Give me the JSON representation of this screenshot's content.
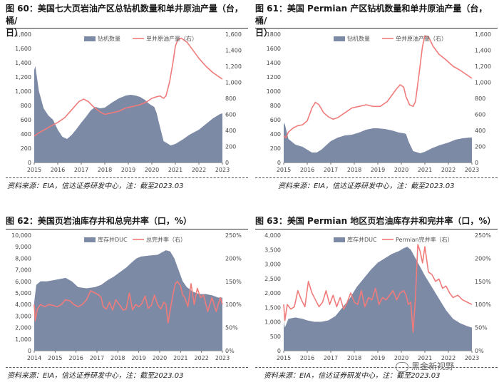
{
  "colors": {
    "area": "#7d8aa5",
    "line": "#f07b7b",
    "axis": "#555555"
  },
  "panels": [
    {
      "id": "p60",
      "title_line1": "图 60：美国七大页岩油产区总钻机数量和单井原油产量（台，桶/",
      "title_line2": "日）",
      "source": "资料来源：EIA，信达证券研发中心，注：截至2023.03",
      "chart_data": {
        "type": "area+line",
        "legend": [
          "钻机数量",
          "单井原油产量（右）"
        ],
        "legend_position": "top-center",
        "x_ticks": [
          "2015",
          "2016",
          "2017",
          "2018",
          "2019",
          "2020",
          "2021",
          "2022",
          "2023"
        ],
        "x_range": [
          2015,
          2023
        ],
        "y_left_ticks": [
          "0",
          "200",
          "400",
          "600",
          "800",
          "1,000",
          "1,200",
          "1,400",
          "1,600",
          "1,800"
        ],
        "y_left_range": [
          0,
          1800
        ],
        "y_right_ticks": [
          "0",
          "200",
          "400",
          "600",
          "800",
          "1,000",
          "1,200",
          "1,400",
          "1,600"
        ],
        "y_right_range": [
          0,
          1600
        ],
        "series": [
          {
            "name": "钻机数量",
            "axis": "left",
            "kind": "area",
            "x": [
              2015,
              2015.05,
              2015.2,
              2015.4,
              2015.6,
              2015.8,
              2016,
              2016.2,
              2016.4,
              2016.6,
              2016.8,
              2017,
              2017.2,
              2017.4,
              2017.6,
              2017.8,
              2018,
              2018.3,
              2018.6,
              2018.9,
              2019.1,
              2019.3,
              2019.5,
              2019.7,
              2019.9,
              2020.1,
              2020.2,
              2020.3,
              2020.5,
              2020.8,
              2021,
              2021.3,
              2021.6,
              2022,
              2022.3,
              2022.6,
              2022.9,
              2023
            ],
            "values": [
              1300,
              1350,
              1000,
              760,
              660,
              600,
              460,
              360,
              330,
              390,
              470,
              560,
              640,
              730,
              780,
              760,
              770,
              840,
              900,
              940,
              950,
              940,
              920,
              880,
              820,
              780,
              700,
              560,
              300,
              240,
              260,
              320,
              390,
              460,
              540,
              620,
              680,
              690
            ]
          },
          {
            "name": "单井原油产量（右）",
            "axis": "right",
            "kind": "line",
            "x": [
              2015,
              2015.2,
              2015.5,
              2015.8,
              2016,
              2016.3,
              2016.6,
              2016.9,
              2017.1,
              2017.3,
              2017.5,
              2017.8,
              2018,
              2018.3,
              2018.6,
              2018.9,
              2019.2,
              2019.5,
              2019.8,
              2020,
              2020.2,
              2020.35,
              2020.5,
              2020.6,
              2020.75,
              2020.9,
              2021,
              2021.1,
              2021.25,
              2021.5,
              2021.8,
              2022,
              2022.3,
              2022.6,
              2022.9,
              2023
            ],
            "values": [
              330,
              370,
              420,
              470,
              500,
              560,
              660,
              760,
              790,
              760,
              700,
              630,
              600,
              620,
              640,
              680,
              700,
              720,
              760,
              800,
              820,
              830,
              800,
              830,
              1000,
              1250,
              1450,
              1530,
              1550,
              1500,
              1380,
              1300,
              1200,
              1120,
              1060,
              1040
            ]
          }
        ]
      }
    },
    {
      "id": "p61",
      "title_line1": "图 61：美国 Permian 产区钻机数量和单井原油产量（台，桶/",
      "title_line2": "日）",
      "source": "资料来源：EIA，信达证券研发中心，注：截至2023.03",
      "chart_data": {
        "type": "area+line",
        "legend": [
          "钻机数量",
          "单井原油产量（右）"
        ],
        "legend_position": "top-center",
        "x_ticks": [
          "2015",
          "2016",
          "2017",
          "2018",
          "2019",
          "2020",
          "2021",
          "2022",
          "2023"
        ],
        "x_range": [
          2015,
          2023
        ],
        "y_left_ticks": [
          "0",
          "200",
          "400",
          "600",
          "800",
          "1000",
          "1200",
          "1400",
          "1600",
          "1800"
        ],
        "y_left_range": [
          0,
          1800
        ],
        "y_right_ticks": [
          "0",
          "200",
          "400",
          "600",
          "800",
          "1,000",
          "1,200",
          "1,400",
          "1,600"
        ],
        "y_right_range": [
          0,
          1600
        ],
        "series": [
          {
            "name": "钻机数量",
            "axis": "left",
            "kind": "area",
            "x": [
              2015,
              2015.03,
              2015.2,
              2015.5,
              2015.8,
              2016,
              2016.2,
              2016.4,
              2016.6,
              2016.8,
              2017,
              2017.3,
              2017.6,
              2017.9,
              2018.2,
              2018.5,
              2018.8,
              2019,
              2019.3,
              2019.6,
              2019.9,
              2020.1,
              2020.2,
              2020.3,
              2020.5,
              2020.8,
              2021,
              2021.3,
              2021.6,
              2022,
              2022.3,
              2022.6,
              2022.9,
              2023
            ],
            "values": [
              520,
              560,
              330,
              250,
              220,
              180,
              140,
              140,
              180,
              240,
              300,
              350,
              380,
              390,
              420,
              460,
              480,
              480,
              470,
              450,
              420,
              410,
              400,
              300,
              160,
              130,
              150,
              200,
              240,
              280,
              320,
              340,
              350,
              350
            ]
          },
          {
            "name": "单井原油产量（右）",
            "axis": "right",
            "kind": "line",
            "x": [
              2015,
              2015.1,
              2015.2,
              2015.4,
              2015.6,
              2015.8,
              2016,
              2016.2,
              2016.35,
              2016.5,
              2016.7,
              2016.9,
              2017.1,
              2017.3,
              2017.6,
              2017.9,
              2018.2,
              2018.5,
              2018.8,
              2019.1,
              2019.4,
              2019.6,
              2019.8,
              2019.95,
              2020.1,
              2020.2,
              2020.35,
              2020.5,
              2020.6,
              2020.75,
              2020.9,
              2021,
              2021.15,
              2021.35,
              2021.6,
              2021.9,
              2022.2,
              2022.5,
              2022.8,
              2023
            ],
            "values": [
              330,
              310,
              380,
              430,
              460,
              470,
              520,
              680,
              750,
              720,
              620,
              570,
              540,
              560,
              620,
              680,
              700,
              720,
              700,
              700,
              760,
              840,
              920,
              970,
              940,
              820,
              720,
              700,
              760,
              1100,
              1450,
              1580,
              1570,
              1450,
              1350,
              1280,
              1200,
              1150,
              1090,
              1050
            ]
          }
        ]
      }
    },
    {
      "id": "p62",
      "title_line1": "图 62：美国页岩油库存井和总完井率（口，%）",
      "source": "资料来源：EIA，信达证券研发中心，注：截至2023.03",
      "chart_data": {
        "type": "area+line",
        "legend": [
          "库存井DUC",
          "总完井率（右）"
        ],
        "legend_position": "top-center",
        "x_ticks": [
          "2014",
          "2015",
          "2016",
          "2017",
          "2018",
          "2019",
          "2020",
          "2021",
          "2022",
          "2023"
        ],
        "x_range": [
          2014,
          2023
        ],
        "y_left_ticks": [
          "0",
          "1,000",
          "2,000",
          "3,000",
          "4,000",
          "5,000",
          "6,000",
          "7,000",
          "8,000",
          "9,000",
          "10,000"
        ],
        "y_left_range": [
          0,
          10000
        ],
        "y_right_ticks": [
          "0%",
          "50%",
          "100%",
          "150%",
          "200%",
          "250%"
        ],
        "y_right_range": [
          0,
          250
        ],
        "series": [
          {
            "name": "库存井DUC",
            "axis": "left",
            "kind": "area",
            "x": [
              2014,
              2014.1,
              2014.3,
              2014.6,
              2014.9,
              2015.2,
              2015.5,
              2015.8,
              2016.1,
              2016.5,
              2016.9,
              2017.2,
              2017.5,
              2017.8,
              2018.1,
              2018.4,
              2018.7,
              2018.9,
              2019.1,
              2019.3,
              2019.6,
              2019.9,
              2020.1,
              2020.3,
              2020.5,
              2020.7,
              2020.9,
              2021.1,
              2021.3,
              2021.6,
              2021.9,
              2022.2,
              2022.5,
              2022.8,
              2023
            ],
            "values": [
              4200,
              5700,
              6000,
              6000,
              6100,
              6200,
              6300,
              6000,
              5500,
              5400,
              5500,
              5700,
              6100,
              6400,
              6800,
              7200,
              7700,
              8000,
              8150,
              8200,
              8250,
              8300,
              8500,
              8700,
              8600,
              8000,
              7000,
              6000,
              5500,
              5100,
              4900,
              4900,
              4800,
              4600,
              4600
            ]
          },
          {
            "name": "总完井率（右）",
            "axis": "right",
            "kind": "line",
            "x": [
              2014,
              2014.05,
              2014.15,
              2014.3,
              2014.5,
              2014.7,
              2014.9,
              2015.1,
              2015.3,
              2015.5,
              2015.7,
              2015.9,
              2016.1,
              2016.3,
              2016.5,
              2016.7,
              2016.9,
              2017.1,
              2017.2,
              2017.3,
              2017.45,
              2017.6,
              2017.75,
              2017.9,
              2018.1,
              2018.25,
              2018.4,
              2018.55,
              2018.7,
              2018.85,
              2019,
              2019.15,
              2019.3,
              2019.45,
              2019.6,
              2019.75,
              2019.9,
              2020.05,
              2020.2,
              2020.3,
              2020.4,
              2020.55,
              2020.65,
              2020.75,
              2020.85,
              2021,
              2021.1,
              2021.2,
              2021.35,
              2021.5,
              2021.65,
              2021.8,
              2021.95,
              2022.1,
              2022.3,
              2022.5,
              2022.7,
              2022.9,
              2023
            ],
            "values": [
              100,
              65,
              90,
              100,
              95,
              100,
              98,
              95,
              100,
              110,
              108,
              100,
              95,
              100,
              110,
              130,
              125,
              120,
              115,
              95,
              90,
              105,
              88,
              110,
              98,
              88,
              90,
              125,
              88,
              100,
              95,
              102,
              118,
              92,
              98,
              120,
              100,
              90,
              105,
              100,
              60,
              100,
              125,
              145,
              150,
              140,
              120,
              115,
              95,
              145,
              100,
              135,
              115,
              120,
              85,
              115,
              85,
              115,
              100
            ]
          }
        ]
      }
    },
    {
      "id": "p63",
      "title_line1": "图 63：美国 Permian 地区页岩油库存井和完井率（口，%）",
      "source": "资料来源：EIA，信达证券研发中心，注：截至2023.03",
      "chart_data": {
        "type": "area+line",
        "legend": [
          "库存井DUC",
          "Permian完井率（右）"
        ],
        "legend_position": "top-center",
        "x_ticks": [
          "2015",
          "2016",
          "2017",
          "2018",
          "2019",
          "2020",
          "2021",
          "2022",
          "2023"
        ],
        "x_range": [
          2015,
          2023
        ],
        "y_left_ticks": [
          "0",
          "500",
          "1,000",
          "1,500",
          "2,000",
          "2,500",
          "3,000",
          "3,500",
          "4,000"
        ],
        "y_left_range": [
          0,
          4000
        ],
        "y_right_ticks": [
          "0%",
          "50%",
          "100%",
          "150%",
          "200%",
          "250%"
        ],
        "y_right_range": [
          0,
          250
        ],
        "series": [
          {
            "name": "库存井DUC",
            "axis": "left",
            "kind": "area",
            "x": [
              2015,
              2015.05,
              2015.2,
              2015.5,
              2015.8,
              2016,
              2016.3,
              2016.6,
              2016.9,
              2017.2,
              2017.5,
              2017.8,
              2018.1,
              2018.4,
              2018.7,
              2019,
              2019.3,
              2019.6,
              2019.9,
              2020.1,
              2020.25,
              2020.4,
              2020.6,
              2020.8,
              2021,
              2021.3,
              2021.6,
              2021.9,
              2022.2,
              2022.5,
              2022.8,
              2023
            ],
            "values": [
              1000,
              800,
              1100,
              1150,
              1100,
              1050,
              1000,
              1000,
              1050,
              1200,
              1500,
              1800,
              2200,
              2500,
              2800,
              3050,
              3200,
              3350,
              3450,
              3550,
              3600,
              3500,
              3200,
              2900,
              2600,
              2200,
              1800,
              1400,
              1100,
              950,
              850,
              800
            ]
          },
          {
            "name": "Permian完井率（右）",
            "axis": "right",
            "kind": "line",
            "x": [
              2015,
              2015.05,
              2015.15,
              2015.3,
              2015.45,
              2015.6,
              2015.75,
              2015.9,
              2016.05,
              2016.2,
              2016.35,
              2016.5,
              2016.65,
              2016.8,
              2016.95,
              2017.1,
              2017.25,
              2017.4,
              2017.55,
              2017.7,
              2017.85,
              2018,
              2018.15,
              2018.3,
              2018.45,
              2018.6,
              2018.75,
              2018.9,
              2019.05,
              2019.2,
              2019.35,
              2019.5,
              2019.65,
              2019.8,
              2019.95,
              2020.1,
              2020.2,
              2020.3,
              2020.4,
              2020.5,
              2020.6,
              2020.7,
              2020.8,
              2020.9,
              2021,
              2021.15,
              2021.3,
              2021.45,
              2021.6,
              2021.75,
              2021.9,
              2022.05,
              2022.2,
              2022.4,
              2022.6,
              2022.8,
              2023
            ],
            "values": [
              100,
              65,
              100,
              90,
              95,
              130,
              110,
              95,
              150,
              125,
              110,
              95,
              105,
              130,
              100,
              120,
              95,
              115,
              90,
              105,
              125,
              105,
              100,
              130,
              95,
              115,
              110,
              135,
              100,
              115,
              110,
              120,
              130,
              110,
              125,
              130,
              120,
              100,
              105,
              40,
              115,
              230,
              215,
              190,
              225,
              170,
              165,
              150,
              155,
              135,
              140,
              125,
              115,
              120,
              110,
              105,
              100
            ]
          }
        ]
      }
    }
  ],
  "watermark": "黑金新视野"
}
